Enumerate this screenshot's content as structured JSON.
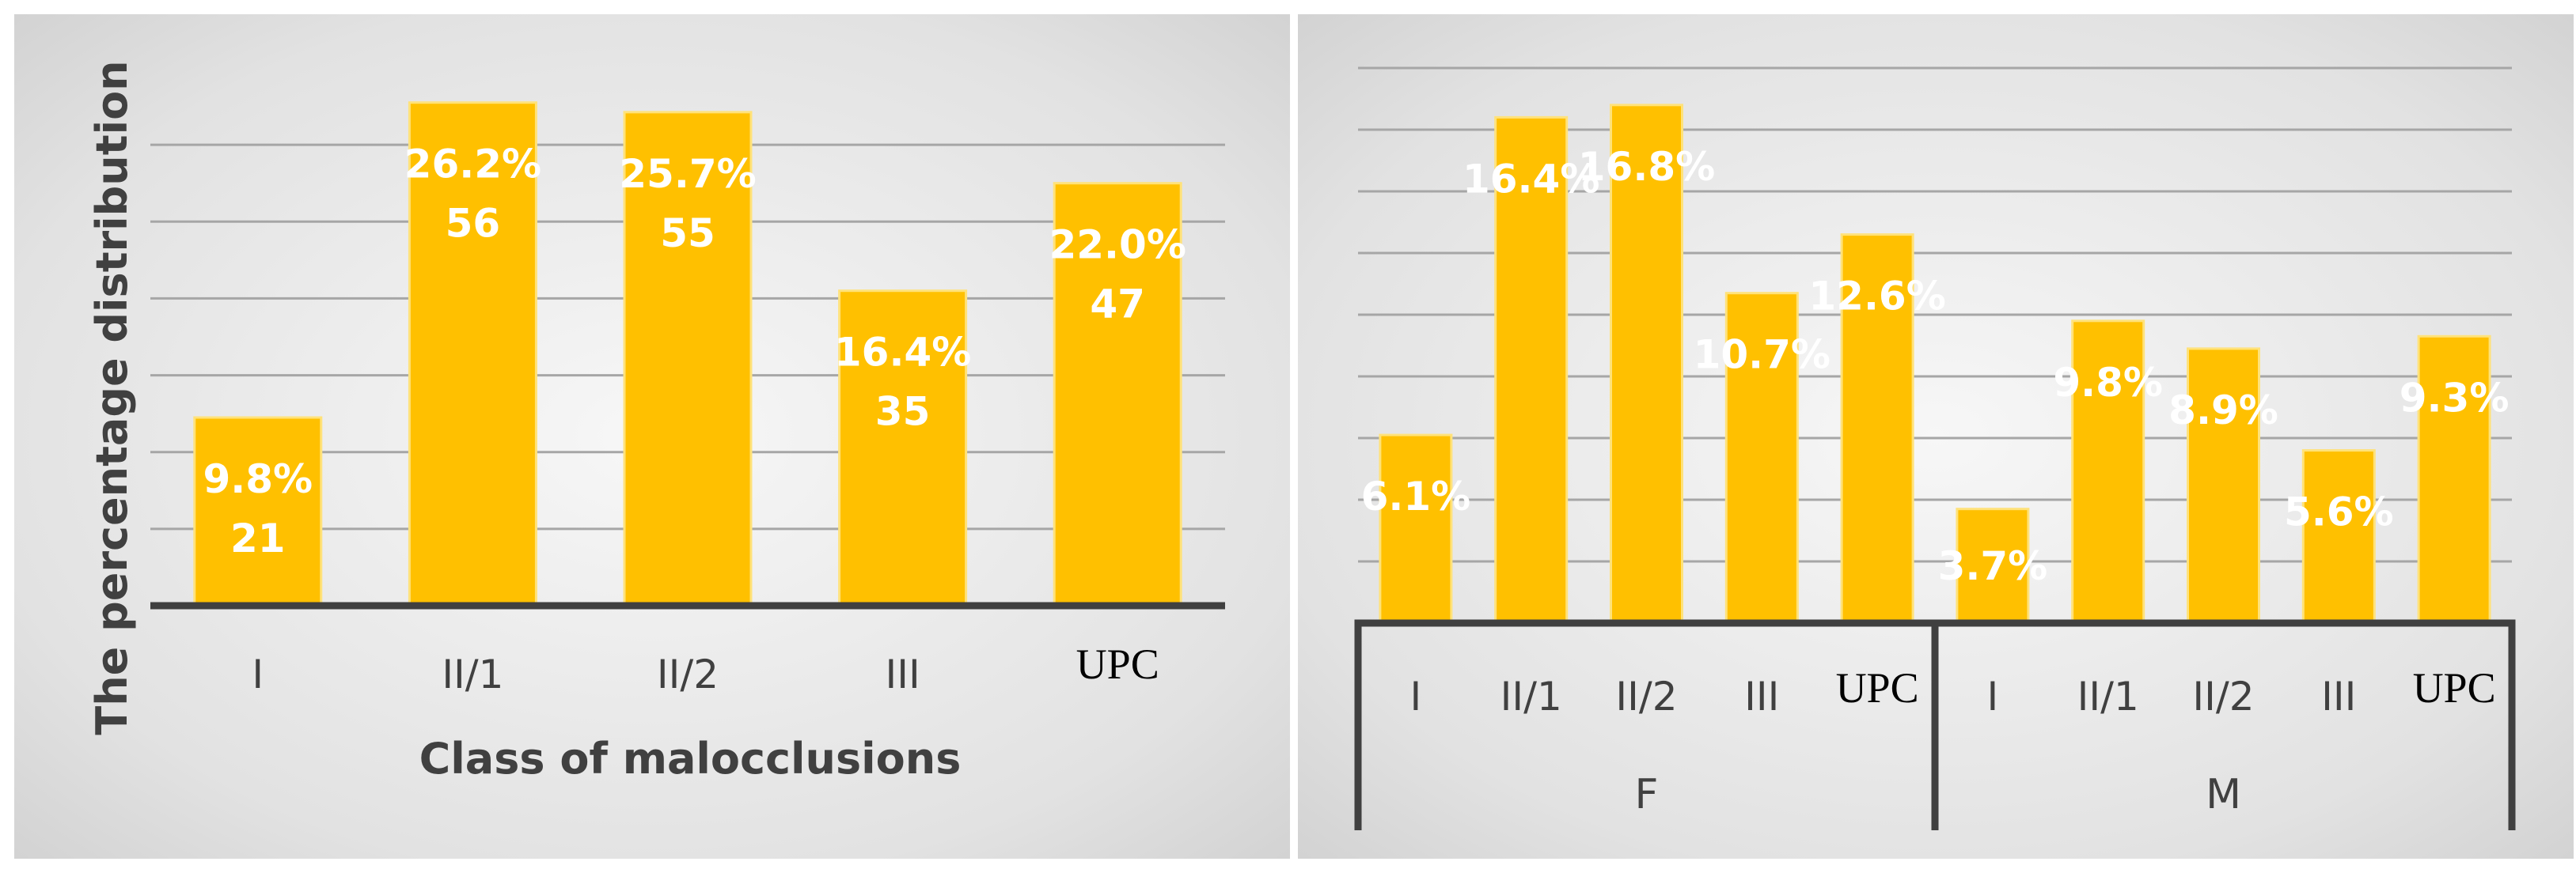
{
  "chart_data": [
    {
      "type": "bar",
      "categories": [
        "I",
        "II/1",
        "II/2",
        "III",
        "UPC"
      ],
      "values": [
        9.8,
        26.2,
        25.7,
        16.4,
        22.0
      ],
      "percent_labels": [
        "9.8%",
        "26.2%",
        "25.7%",
        "16.4%",
        "22.0%"
      ],
      "count_labels": [
        "21",
        "56",
        "55",
        "35",
        "47"
      ],
      "xlabel": "Class of malocclusions",
      "ylabel": "The percentage distribution",
      "ylim": [
        0,
        28
      ],
      "grid": true,
      "legend": false,
      "colors": {
        "bar": "#ffc000",
        "grid": "#a6a6a6",
        "axis": "#404040",
        "label": "#ffffff"
      }
    },
    {
      "type": "bar",
      "groups": [
        {
          "name": "F",
          "categories": [
            "I",
            "II/1",
            "II/2",
            "III",
            "UPC"
          ],
          "values": [
            6.1,
            16.4,
            16.8,
            10.7,
            12.6
          ],
          "labels": [
            "6.1%",
            "16.4%",
            "16.8%",
            "10.7%",
            "12.6%"
          ]
        },
        {
          "name": "M",
          "categories": [
            "I",
            "II/1",
            "II/2",
            "III",
            "UPC"
          ],
          "values": [
            3.7,
            9.8,
            8.9,
            5.6,
            9.3
          ],
          "labels": [
            "3.7%",
            "9.8%",
            "8.9%",
            "5.6%",
            "9.3%"
          ]
        }
      ],
      "ylim": [
        0,
        18
      ],
      "grid": true,
      "legend": false,
      "colors": {
        "bar": "#ffc000",
        "grid": "#a6a6a6",
        "axis": "#404040",
        "label": "#ffffff"
      }
    }
  ]
}
